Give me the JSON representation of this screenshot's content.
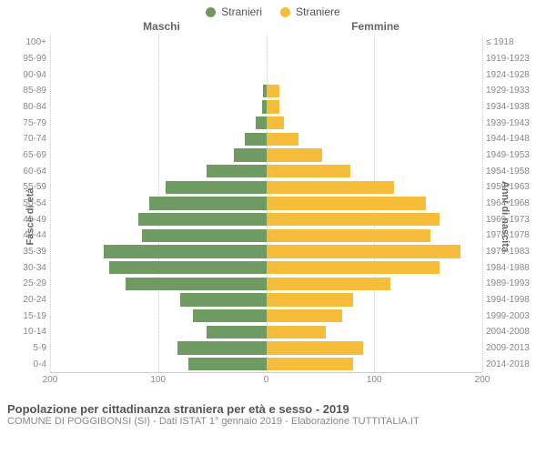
{
  "legend": {
    "maleLabel": "Stranieri",
    "femaleLabel": "Straniere",
    "maleColor": "#6f9b63",
    "femaleColor": "#f6bd3a"
  },
  "columnHeaders": {
    "left": "Maschi",
    "right": "Femmine"
  },
  "axisLabels": {
    "left": "Fasce di età",
    "right": "Anni di nascita"
  },
  "chart": {
    "type": "population-pyramid",
    "xlim": 200,
    "xticks": [
      200,
      100,
      0,
      100,
      200
    ],
    "gridline_color": "#cccccc",
    "centerline_color": "#b5a642",
    "background_color": "#ffffff",
    "bar_fill_ratio": 0.8,
    "rows": [
      {
        "ageLabel": "100+",
        "birthLabel": "≤ 1918",
        "male": 0,
        "female": 0
      },
      {
        "ageLabel": "95-99",
        "birthLabel": "1919-1923",
        "male": 0,
        "female": 0
      },
      {
        "ageLabel": "90-94",
        "birthLabel": "1924-1928",
        "male": 0,
        "female": 0
      },
      {
        "ageLabel": "85-89",
        "birthLabel": "1929-1933",
        "male": 3,
        "female": 12
      },
      {
        "ageLabel": "80-84",
        "birthLabel": "1934-1938",
        "male": 4,
        "female": 12
      },
      {
        "ageLabel": "75-79",
        "birthLabel": "1939-1943",
        "male": 10,
        "female": 16
      },
      {
        "ageLabel": "70-74",
        "birthLabel": "1944-1948",
        "male": 20,
        "female": 30
      },
      {
        "ageLabel": "65-69",
        "birthLabel": "1949-1953",
        "male": 30,
        "female": 52
      },
      {
        "ageLabel": "60-64",
        "birthLabel": "1954-1958",
        "male": 55,
        "female": 78
      },
      {
        "ageLabel": "55-59",
        "birthLabel": "1959-1963",
        "male": 93,
        "female": 118
      },
      {
        "ageLabel": "50-54",
        "birthLabel": "1964-1968",
        "male": 108,
        "female": 148
      },
      {
        "ageLabel": "45-49",
        "birthLabel": "1969-1973",
        "male": 118,
        "female": 160
      },
      {
        "ageLabel": "40-44",
        "birthLabel": "1974-1978",
        "male": 115,
        "female": 152
      },
      {
        "ageLabel": "35-39",
        "birthLabel": "1979-1983",
        "male": 150,
        "female": 180
      },
      {
        "ageLabel": "30-34",
        "birthLabel": "1984-1988",
        "male": 145,
        "female": 160
      },
      {
        "ageLabel": "25-29",
        "birthLabel": "1989-1993",
        "male": 130,
        "female": 115
      },
      {
        "ageLabel": "20-24",
        "birthLabel": "1994-1998",
        "male": 80,
        "female": 80
      },
      {
        "ageLabel": "15-19",
        "birthLabel": "1999-2003",
        "male": 68,
        "female": 70
      },
      {
        "ageLabel": "10-14",
        "birthLabel": "2004-2008",
        "male": 55,
        "female": 55
      },
      {
        "ageLabel": "5-9",
        "birthLabel": "2009-2013",
        "male": 82,
        "female": 90
      },
      {
        "ageLabel": "0-4",
        "birthLabel": "2014-2018",
        "male": 72,
        "female": 80
      }
    ]
  },
  "footer": {
    "title": "Popolazione per cittadinanza straniera per età e sesso - 2019",
    "subtitle": "COMUNE DI POGGIBONSI (SI) - Dati ISTAT 1° gennaio 2019 - Elaborazione TUTTITALIA.IT"
  },
  "typography": {
    "legend_fontsize": 12,
    "header_fontsize": 12,
    "tick_fontsize": 10,
    "axislabel_fontsize": 11,
    "footer_title_fontsize": 13,
    "footer_sub_fontsize": 11,
    "tick_color": "#888888",
    "label_color": "#666666"
  }
}
